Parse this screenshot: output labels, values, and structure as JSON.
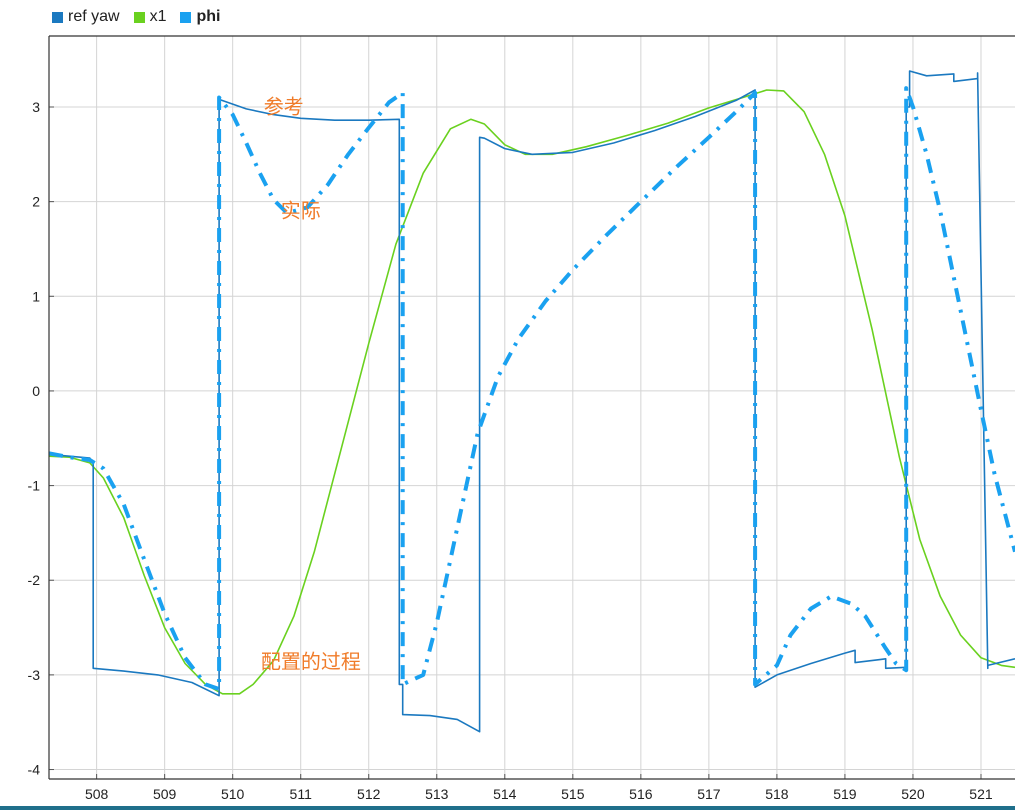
{
  "legend": [
    {
      "label": "ref yaw",
      "color": "#1b79c0",
      "bold": false
    },
    {
      "label": "x1",
      "color": "#6ad11f",
      "bold": false
    },
    {
      "label": "phi",
      "color": "#1aa1f0",
      "bold": true
    }
  ],
  "chart_data": {
    "type": "line",
    "xlim": [
      507.3,
      521.5
    ],
    "ylim": [
      -4.1,
      3.75
    ],
    "xticks": [
      508,
      509,
      510,
      511,
      512,
      513,
      514,
      515,
      516,
      517,
      518,
      519,
      520,
      521
    ],
    "yticks": [
      -4,
      -3,
      -2,
      -1,
      0,
      1,
      2,
      3
    ],
    "grid": true,
    "legend_position": "top-left",
    "annotations": [
      {
        "text": "参考",
        "x": 510.75,
        "y": 2.93,
        "color": "#f07c2a"
      },
      {
        "text": "实际",
        "x": 511.0,
        "y": 1.83,
        "color": "#f07c2a"
      },
      {
        "text": "配置的过程",
        "x": 511.15,
        "y": -2.93,
        "color": "#f07c2a"
      }
    ],
    "series": [
      {
        "name": "ref yaw",
        "color": "#1b79c0",
        "style": "step",
        "x": [
          507.3,
          507.6,
          507.9,
          507.95,
          507.95,
          508.4,
          508.9,
          509.4,
          509.8,
          509.8,
          510.2,
          510.6,
          511.0,
          511.5,
          512.0,
          512.45,
          512.45,
          512.5,
          512.5,
          512.9,
          513.3,
          513.63,
          513.63,
          513.7,
          514.0,
          514.4,
          515.0,
          515.6,
          516.2,
          516.8,
          517.4,
          517.68,
          517.68,
          518.0,
          518.5,
          519.0,
          519.15,
          519.15,
          519.5,
          519.6,
          519.6,
          519.9,
          519.9,
          519.95,
          519.95,
          520.2,
          520.6,
          520.6,
          520.95,
          520.95,
          521.1,
          521.1,
          521.5
        ],
        "y": [
          -0.67,
          -0.69,
          -0.71,
          -0.76,
          -2.93,
          -2.96,
          -3.0,
          -3.08,
          -3.22,
          3.08,
          2.98,
          2.92,
          2.88,
          2.86,
          2.86,
          2.87,
          -3.1,
          -3.1,
          -3.42,
          -3.43,
          -3.47,
          -3.6,
          2.68,
          2.67,
          2.56,
          2.5,
          2.52,
          2.62,
          2.75,
          2.9,
          3.07,
          3.18,
          -3.13,
          -3.0,
          -2.88,
          -2.77,
          -2.74,
          -2.87,
          -2.84,
          -2.83,
          -2.93,
          -2.92,
          3.0,
          3.0,
          3.38,
          3.33,
          3.35,
          3.27,
          3.3,
          3.36,
          -2.93,
          -2.9,
          -2.83
        ]
      },
      {
        "name": "x1",
        "color": "#6ad11f",
        "style": "line",
        "x": [
          507.3,
          507.6,
          507.9,
          508.1,
          508.4,
          508.7,
          509.0,
          509.3,
          509.6,
          509.85,
          510.1,
          510.3,
          510.6,
          510.9,
          511.2,
          511.6,
          512.0,
          512.4,
          512.8,
          513.2,
          513.5,
          513.7,
          514.0,
          514.3,
          514.7,
          515.2,
          515.8,
          516.4,
          517.0,
          517.5,
          517.85,
          518.1,
          518.4,
          518.7,
          519.0,
          519.4,
          519.8,
          520.1,
          520.4,
          520.7,
          521.0,
          521.3,
          521.5
        ],
        "y": [
          -0.69,
          -0.7,
          -0.76,
          -0.92,
          -1.34,
          -1.95,
          -2.5,
          -2.88,
          -3.1,
          -3.2,
          -3.2,
          -3.1,
          -2.85,
          -2.38,
          -1.7,
          -0.6,
          0.5,
          1.55,
          2.3,
          2.77,
          2.87,
          2.82,
          2.6,
          2.5,
          2.5,
          2.58,
          2.7,
          2.83,
          2.99,
          3.1,
          3.18,
          3.17,
          2.95,
          2.5,
          1.85,
          0.65,
          -0.7,
          -1.57,
          -2.17,
          -2.58,
          -2.82,
          -2.9,
          -2.92
        ]
      },
      {
        "name": "phi",
        "color": "#1aa1f0",
        "style": "dashdot",
        "x": [
          507.3,
          507.6,
          507.9,
          508.1,
          508.4,
          508.7,
          509.0,
          509.3,
          509.6,
          509.8,
          509.8,
          510.0,
          510.2,
          510.4,
          510.6,
          510.8,
          511.1,
          511.4,
          511.7,
          512.0,
          512.3,
          512.5,
          512.5,
          512.8,
          513.0,
          513.3,
          513.6,
          513.9,
          514.2,
          514.6,
          515.0,
          515.5,
          516.0,
          516.5,
          517.0,
          517.4,
          517.68,
          517.68,
          518.0,
          518.2,
          518.5,
          518.8,
          519.1,
          519.3,
          519.45,
          519.6,
          519.75,
          519.9,
          519.9,
          520.0,
          520.2,
          520.4,
          520.6,
          520.8,
          521.0,
          521.2,
          521.5
        ],
        "y": [
          -0.66,
          -0.7,
          -0.73,
          -0.82,
          -1.2,
          -1.78,
          -2.35,
          -2.82,
          -3.1,
          -3.15,
          3.1,
          2.92,
          2.62,
          2.3,
          2.02,
          1.88,
          1.94,
          2.18,
          2.5,
          2.78,
          3.05,
          3.15,
          -3.1,
          -3.0,
          -2.45,
          -1.45,
          -0.45,
          0.15,
          0.55,
          0.95,
          1.28,
          1.65,
          2.0,
          2.35,
          2.68,
          2.95,
          3.15,
          -3.1,
          -2.9,
          -2.58,
          -2.3,
          -2.17,
          -2.25,
          -2.38,
          -2.55,
          -2.72,
          -2.88,
          -2.95,
          3.2,
          3.0,
          2.5,
          1.9,
          1.2,
          0.5,
          -0.2,
          -0.88,
          -1.7
        ]
      }
    ]
  }
}
